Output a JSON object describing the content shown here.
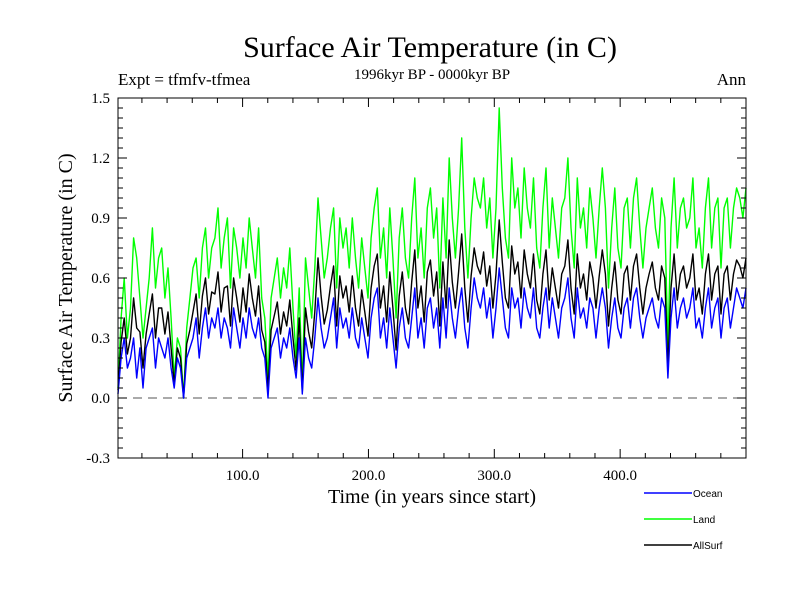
{
  "chart_data": {
    "type": "line",
    "title": "Surface Air Temperature (in C)",
    "subtitle": "1996kyr BP - 0000kyr BP",
    "left_note": "Expt = tfmfv-tfmea",
    "right_note": "Ann",
    "xlabel": "Time (in years since start)",
    "ylabel": "Surface Air Temperature (in C)",
    "xlim": [
      1,
      500
    ],
    "ylim": [
      -0.3,
      1.5
    ],
    "x_ticks": [
      100,
      200,
      300,
      400
    ],
    "x_tick_labels": [
      "100.0",
      "200.0",
      "300.0",
      "400.0"
    ],
    "y_ticks": [
      -0.3,
      0.0,
      0.3,
      0.6,
      0.9,
      1.2,
      1.5
    ],
    "y_tick_labels": [
      "-0.3",
      "0.0",
      "0.3",
      "0.6",
      "0.9",
      "1.2",
      "1.5"
    ],
    "reference_line": 0.0,
    "x_sampling": "x = 1 + i * 2.5 (years) for i = 0..199",
    "series": [
      {
        "name": "Ocean",
        "color": "#0000ff",
        "values": [
          0.02,
          0.2,
          0.3,
          0.15,
          0.2,
          0.3,
          0.1,
          0.25,
          0.05,
          0.25,
          0.3,
          0.35,
          0.15,
          0.3,
          0.25,
          0.2,
          0.3,
          0.15,
          0.05,
          0.2,
          0.15,
          0.0,
          0.2,
          0.25,
          0.3,
          0.4,
          0.2,
          0.35,
          0.45,
          0.3,
          0.4,
          0.35,
          0.45,
          0.3,
          0.4,
          0.35,
          0.25,
          0.45,
          0.35,
          0.25,
          0.4,
          0.3,
          0.45,
          0.35,
          0.3,
          0.4,
          0.25,
          0.2,
          0.0,
          0.25,
          0.3,
          0.35,
          0.2,
          0.3,
          0.25,
          0.35,
          0.2,
          0.1,
          0.3,
          0.02,
          0.3,
          0.2,
          0.15,
          0.3,
          0.5,
          0.35,
          0.25,
          0.3,
          0.4,
          0.5,
          0.25,
          0.45,
          0.35,
          0.4,
          0.3,
          0.45,
          0.3,
          0.25,
          0.4,
          0.3,
          0.2,
          0.4,
          0.5,
          0.55,
          0.3,
          0.4,
          0.25,
          0.45,
          0.3,
          0.15,
          0.35,
          0.45,
          0.3,
          0.25,
          0.4,
          0.55,
          0.3,
          0.4,
          0.25,
          0.45,
          0.5,
          0.35,
          0.45,
          0.25,
          0.5,
          0.3,
          0.55,
          0.4,
          0.3,
          0.45,
          0.55,
          0.35,
          0.25,
          0.45,
          0.6,
          0.5,
          0.45,
          0.55,
          0.4,
          0.5,
          0.3,
          0.45,
          0.65,
          0.5,
          0.35,
          0.3,
          0.55,
          0.45,
          0.5,
          0.35,
          0.55,
          0.45,
          0.4,
          0.55,
          0.35,
          0.3,
          0.45,
          0.55,
          0.35,
          0.5,
          0.4,
          0.3,
          0.45,
          0.5,
          0.6,
          0.4,
          0.3,
          0.55,
          0.4,
          0.45,
          0.35,
          0.5,
          0.45,
          0.3,
          0.45,
          0.55,
          0.45,
          0.25,
          0.4,
          0.5,
          0.35,
          0.3,
          0.45,
          0.5,
          0.35,
          0.5,
          0.55,
          0.4,
          0.3,
          0.4,
          0.45,
          0.5,
          0.4,
          0.35,
          0.5,
          0.45,
          0.1,
          0.4,
          0.55,
          0.35,
          0.45,
          0.5,
          0.4,
          0.45,
          0.55,
          0.35,
          0.4,
          0.3,
          0.45,
          0.55,
          0.35,
          0.45,
          0.5,
          0.3,
          0.45,
          0.5,
          0.35,
          0.45,
          0.55,
          0.5,
          0.45,
          0.55
        ]
      },
      {
        "name": "Land",
        "color": "#00ff00",
        "values": [
          0.05,
          0.4,
          0.6,
          0.3,
          0.45,
          0.8,
          0.7,
          0.5,
          0.3,
          0.45,
          0.6,
          0.85,
          0.55,
          0.7,
          0.75,
          0.5,
          0.65,
          0.4,
          0.1,
          0.3,
          0.25,
          0.0,
          0.35,
          0.5,
          0.65,
          0.7,
          0.5,
          0.75,
          0.85,
          0.6,
          0.75,
          0.8,
          0.95,
          0.65,
          0.8,
          0.9,
          0.55,
          0.85,
          0.75,
          0.6,
          0.8,
          0.65,
          0.9,
          0.75,
          0.6,
          0.85,
          0.5,
          0.4,
          0.1,
          0.5,
          0.6,
          0.7,
          0.5,
          0.65,
          0.55,
          0.75,
          0.45,
          0.2,
          0.55,
          0.05,
          0.7,
          0.55,
          0.4,
          0.65,
          1.0,
          0.8,
          0.6,
          0.7,
          0.85,
          0.95,
          0.55,
          0.9,
          0.75,
          0.85,
          0.65,
          0.9,
          0.7,
          0.55,
          0.8,
          0.65,
          0.5,
          0.8,
          0.95,
          1.05,
          0.7,
          0.85,
          0.6,
          0.95,
          0.7,
          0.4,
          0.8,
          0.95,
          0.7,
          0.6,
          0.9,
          1.1,
          0.7,
          0.85,
          0.6,
          0.95,
          1.05,
          0.8,
          0.95,
          0.55,
          1.0,
          0.7,
          1.2,
          0.9,
          0.7,
          0.95,
          1.3,
          0.85,
          0.6,
          0.9,
          1.1,
          1.0,
          0.95,
          1.1,
          0.85,
          1.0,
          0.7,
          0.95,
          1.45,
          1.05,
          0.8,
          0.7,
          1.2,
          0.95,
          1.05,
          0.8,
          1.15,
          0.95,
          0.85,
          1.1,
          0.75,
          0.65,
          0.95,
          1.15,
          0.75,
          1.0,
          0.85,
          0.7,
          0.95,
          1.0,
          1.2,
          0.85,
          0.65,
          1.1,
          0.85,
          0.95,
          0.75,
          1.05,
          0.9,
          0.7,
          0.95,
          1.15,
          0.95,
          0.55,
          0.85,
          1.05,
          0.75,
          0.65,
          0.95,
          1.0,
          0.75,
          1.0,
          1.1,
          0.85,
          0.65,
          0.85,
          0.95,
          1.05,
          0.85,
          0.75,
          1.0,
          0.9,
          0.25,
          0.85,
          1.1,
          0.75,
          0.95,
          1.0,
          0.85,
          0.9,
          1.1,
          0.75,
          0.85,
          0.65,
          0.95,
          1.1,
          0.75,
          0.95,
          1.0,
          0.65,
          0.95,
          1.0,
          0.75,
          0.95,
          1.05,
          1.0,
          0.9,
          1.05
        ]
      },
      {
        "name": "AllSurf",
        "color": "#000000",
        "values": [
          0.04,
          0.28,
          0.4,
          0.22,
          0.3,
          0.5,
          0.35,
          0.33,
          0.15,
          0.32,
          0.42,
          0.52,
          0.3,
          0.45,
          0.45,
          0.32,
          0.43,
          0.25,
          0.07,
          0.25,
          0.2,
          0.0,
          0.27,
          0.34,
          0.43,
          0.52,
          0.32,
          0.51,
          0.6,
          0.42,
          0.53,
          0.52,
          0.63,
          0.43,
          0.55,
          0.56,
          0.36,
          0.6,
          0.5,
          0.38,
          0.55,
          0.43,
          0.62,
          0.5,
          0.41,
          0.56,
          0.34,
          0.28,
          0.04,
          0.34,
          0.41,
          0.48,
          0.32,
          0.43,
          0.36,
          0.49,
          0.3,
          0.14,
          0.4,
          0.03,
          0.45,
          0.33,
          0.25,
          0.43,
          0.7,
          0.51,
          0.37,
          0.44,
          0.56,
          0.66,
          0.36,
          0.61,
          0.5,
          0.56,
          0.43,
          0.61,
          0.45,
          0.36,
          0.54,
          0.43,
          0.31,
          0.55,
          0.66,
          0.72,
          0.45,
          0.56,
          0.38,
          0.63,
          0.45,
          0.24,
          0.51,
          0.63,
          0.45,
          0.37,
          0.58,
          0.74,
          0.45,
          0.56,
          0.38,
          0.63,
          0.69,
          0.51,
          0.63,
          0.36,
          0.68,
          0.45,
          0.79,
          0.58,
          0.45,
          0.63,
          0.82,
          0.55,
          0.38,
          0.61,
          0.75,
          0.66,
          0.62,
          0.73,
          0.56,
          0.66,
          0.45,
          0.62,
          0.89,
          0.68,
          0.5,
          0.45,
          0.76,
          0.62,
          0.68,
          0.5,
          0.74,
          0.62,
          0.55,
          0.72,
          0.49,
          0.42,
          0.62,
          0.74,
          0.49,
          0.65,
          0.55,
          0.45,
          0.62,
          0.66,
          0.79,
          0.55,
          0.42,
          0.72,
          0.55,
          0.62,
          0.49,
          0.68,
          0.6,
          0.45,
          0.61,
          0.74,
          0.62,
          0.36,
          0.55,
          0.68,
          0.49,
          0.42,
          0.62,
          0.66,
          0.49,
          0.66,
          0.72,
          0.55,
          0.42,
          0.55,
          0.62,
          0.68,
          0.55,
          0.49,
          0.66,
          0.6,
          0.15,
          0.55,
          0.72,
          0.49,
          0.62,
          0.66,
          0.55,
          0.6,
          0.72,
          0.49,
          0.55,
          0.42,
          0.62,
          0.72,
          0.49,
          0.62,
          0.66,
          0.42,
          0.62,
          0.66,
          0.49,
          0.62,
          0.69,
          0.66,
          0.6,
          0.7
        ]
      }
    ]
  }
}
